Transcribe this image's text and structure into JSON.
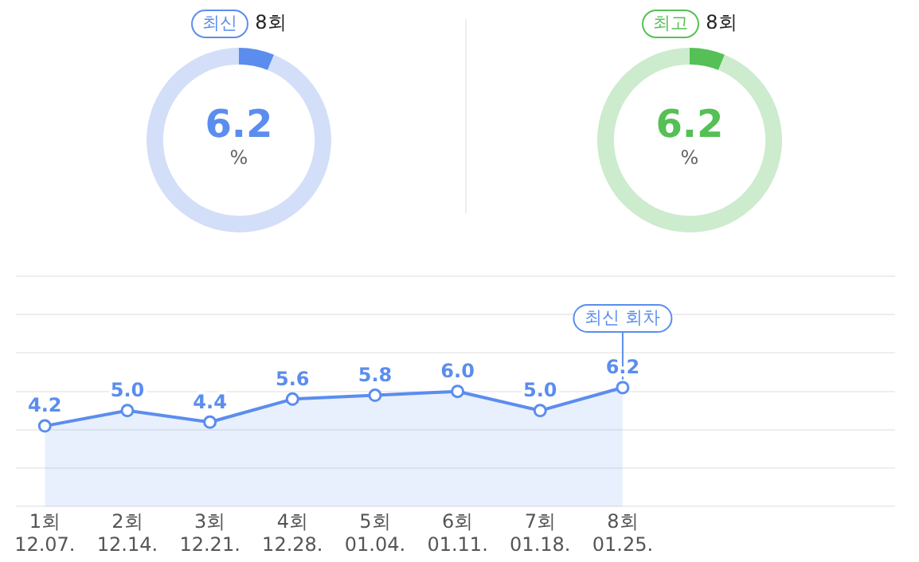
{
  "chart_data": [
    {
      "type": "donut",
      "title": "최신",
      "subtitle": "8회",
      "categories": [
        null,
        null
      ],
      "values": [
        6.2,
        93.8
      ],
      "colors": [
        "#5b8def",
        "#d3dff8"
      ],
      "annotations": [
        "6.2",
        "%"
      ],
      "legend": false
    },
    {
      "type": "donut",
      "title": "최고",
      "subtitle": "8회",
      "categories": [
        null,
        null
      ],
      "values": [
        6.2,
        93.8
      ],
      "colors": [
        "#55c055",
        "#cdebcd"
      ],
      "annotations": [
        "6.2",
        "%"
      ],
      "legend": false
    },
    {
      "type": "area",
      "categories": [
        "1회\n12.07.",
        "2회\n12.14.",
        "3회\n12.21.",
        "4회\n12.28.",
        "5회\n01.04.",
        "6회\n01.11.",
        "7회\n01.18.",
        "8회\n01.25."
      ],
      "series": [
        {
          "color": "#5b8def",
          "values": [
            4.2,
            5.0,
            4.4,
            5.6,
            5.8,
            6.0,
            5.0,
            6.2
          ],
          "value_labels": [
            "4.2",
            "5.0",
            "4.4",
            "5.6",
            "5.8",
            "6.0",
            "5.0",
            "6.2"
          ]
        }
      ],
      "ylim": [
        0,
        12
      ],
      "yticks": [
        {
          "value": 0,
          "label": null
        },
        {
          "value": 2,
          "label": null
        },
        {
          "value": 4,
          "label": null
        },
        {
          "value": 6,
          "label": null
        },
        {
          "value": 8,
          "label": null
        },
        {
          "value": 10,
          "label": null
        },
        {
          "value": 12,
          "label": null
        }
      ],
      "tick_labels": "x",
      "grid": "y",
      "marker": "circle",
      "line_style": "solid",
      "legend": false,
      "annotations": [
        {
          "text": "최신 회차",
          "x": "8회\n01.25.",
          "y": 6.2
        }
      ]
    }
  ]
}
